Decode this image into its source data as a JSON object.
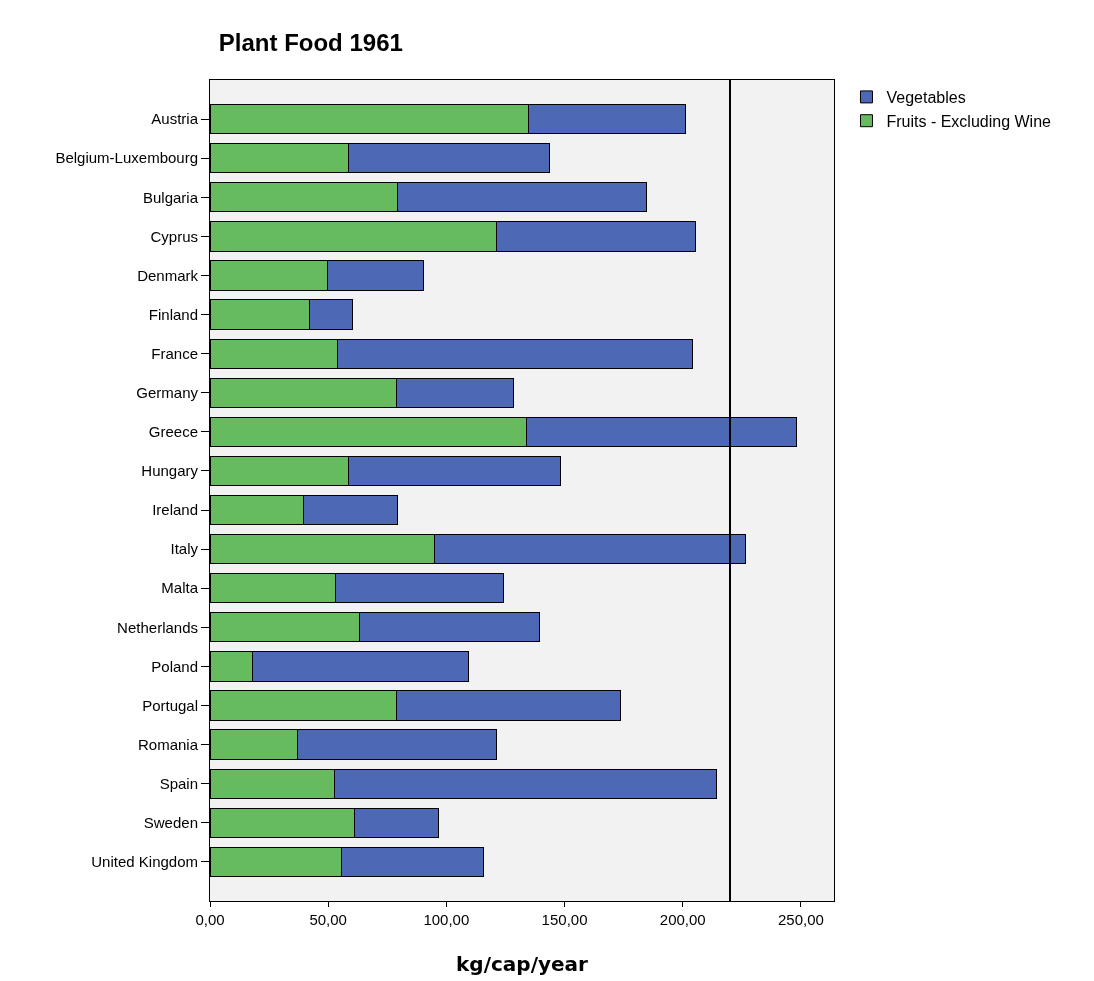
{
  "chart_data": {
    "type": "bar",
    "title": "Plant Food 1961",
    "xlabel": "kg/cap/year",
    "orientation": "horizontal",
    "stacked": true,
    "categories": [
      "Austria",
      "Belgium-Luxembourg",
      "Bulgaria",
      "Cyprus",
      "Denmark",
      "Finland",
      "France",
      "Germany",
      "Greece",
      "Hungary",
      "Ireland",
      "Italy",
      "Malta",
      "Netherlands",
      "Poland",
      "Portugal",
      "Romania",
      "Spain",
      "Sweden",
      "United Kingdom"
    ],
    "series": [
      {
        "name": "Fruits - Excluding Wine",
        "color": "#66bb5e",
        "values": [
          134.6,
          58.5,
          79.5,
          121.4,
          49.6,
          41.9,
          53.8,
          79,
          133.8,
          58.5,
          39.7,
          94.9,
          53,
          63.2,
          17.9,
          79,
          37.2,
          52.6,
          61.1,
          55.6
        ]
      },
      {
        "name": "Vegetables",
        "color": "#4d68b5",
        "values": [
          66.7,
          85,
          105,
          84,
          40.6,
          18.4,
          150.5,
          49.6,
          114.5,
          89.8,
          39.8,
          131.6,
          71,
          76,
          91.5,
          94.5,
          84.2,
          161.5,
          35.5,
          60.2
        ]
      }
    ],
    "xlim": [
      0,
      264
    ],
    "xticks": [
      {
        "value": 0,
        "label": "0,00"
      },
      {
        "value": 50,
        "label": "50,00"
      },
      {
        "value": 100,
        "label": "100,00"
      },
      {
        "value": 150,
        "label": "150,00"
      },
      {
        "value": 200,
        "label": "200,00"
      },
      {
        "value": 250,
        "label": "250,00"
      }
    ],
    "ref_lines": [
      {
        "axis": "x",
        "value": 220,
        "color": "#000000"
      }
    ],
    "grid": false,
    "legend": "top right"
  }
}
